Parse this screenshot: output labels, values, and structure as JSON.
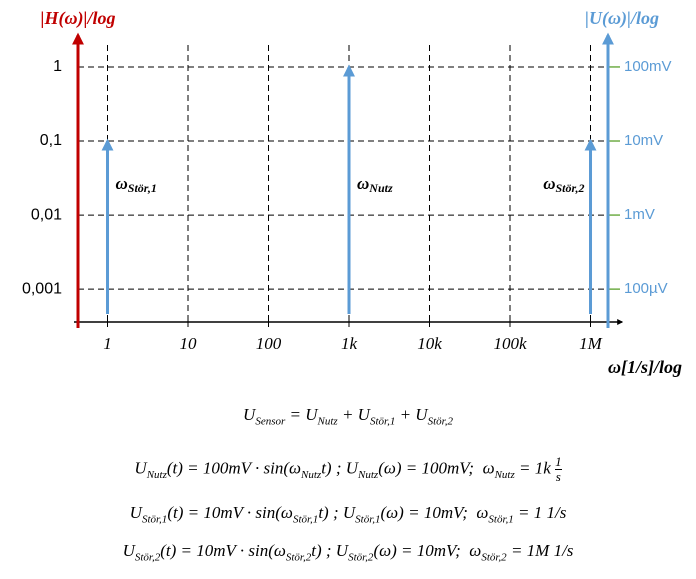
{
  "chart_data": {
    "type": "stem",
    "y_label": "|H(ω)|/log",
    "y2_label": "|U(ω)|/log",
    "x_label": "ω[1/s]/log",
    "xscale": "log",
    "yscale": "log",
    "grid": true,
    "xlim": [
      0.43,
      2000000
    ],
    "ylim": [
      0.00036,
      2.7
    ],
    "y2lim": [
      0.036,
      270
    ],
    "xticks": [
      1,
      10,
      100,
      {
        "value": 1000,
        "label": "1k"
      },
      {
        "value": 10000,
        "label": "10k"
      },
      {
        "value": 100000,
        "label": "100k"
      },
      {
        "value": 1000000,
        "label": "1M"
      }
    ],
    "yticks": [
      1,
      {
        "value": 0.1,
        "label": "0,1"
      },
      {
        "value": 0.01,
        "label": "0,01"
      },
      {
        "value": 0.001,
        "label": "0,001"
      }
    ],
    "y2ticks": [
      {
        "value": 100,
        "label": "100mV"
      },
      {
        "value": 10,
        "label": "10mV"
      },
      {
        "value": 1,
        "label": "1mV"
      },
      {
        "value": 0.1,
        "label": "100µV"
      }
    ],
    "axis_color": "#c00000",
    "y2_color": "#5b9bd5",
    "y2_tick_color": "#70ad47",
    "series": [
      {
        "name": "ω",
        "name_sub": "Stör,1",
        "color": "#5b9bd5",
        "axis": "y2",
        "x": [
          1
        ],
        "values": [
          10
        ]
      },
      {
        "name": "ω",
        "name_sub": "Nutz",
        "color": "#5b9bd5",
        "axis": "y2",
        "x": [
          1000
        ],
        "values": [
          100
        ]
      },
      {
        "name": "ω",
        "name_sub": "Stör,2",
        "color": "#5b9bd5",
        "axis": "y2",
        "x": [
          1000000
        ],
        "values": [
          10
        ]
      }
    ]
  },
  "equations": [
    [
      "U",
      {
        "sub": "Sensor"
      },
      " = U",
      {
        "sub": "Nutz"
      },
      " + U",
      {
        "sub": "Stör,1"
      },
      " + U",
      {
        "sub": "Stör,2"
      }
    ],
    [
      "U",
      {
        "sub": "Nutz"
      },
      "(t) = 100mV · sin(ω",
      {
        "sub": "Nutz"
      },
      "t) ; U",
      {
        "sub": "Nutz"
      },
      "(ω) = 100mV;  ω",
      {
        "sub": "Nutz"
      },
      " = 1k ",
      {
        "num": "1",
        "den": "s"
      }
    ],
    [
      "U",
      {
        "sub": "Stör,1"
      },
      "(t) = 10mV · sin(ω",
      {
        "sub": "Stör,1"
      },
      "t) ; U",
      {
        "sub": "Stör,1"
      },
      "(ω) = 10mV;  ω",
      {
        "sub": "Stör,1"
      },
      " = 1 1/s"
    ],
    [
      "U",
      {
        "sub": "Stör,2"
      },
      "(t) = 10mV · sin(ω",
      {
        "sub": "Stör,2"
      },
      "t) ; U",
      {
        "sub": "Stör,2"
      },
      "(ω) = 10mV;  ω",
      {
        "sub": "Stör,2"
      },
      " = 1M 1/s"
    ]
  ]
}
